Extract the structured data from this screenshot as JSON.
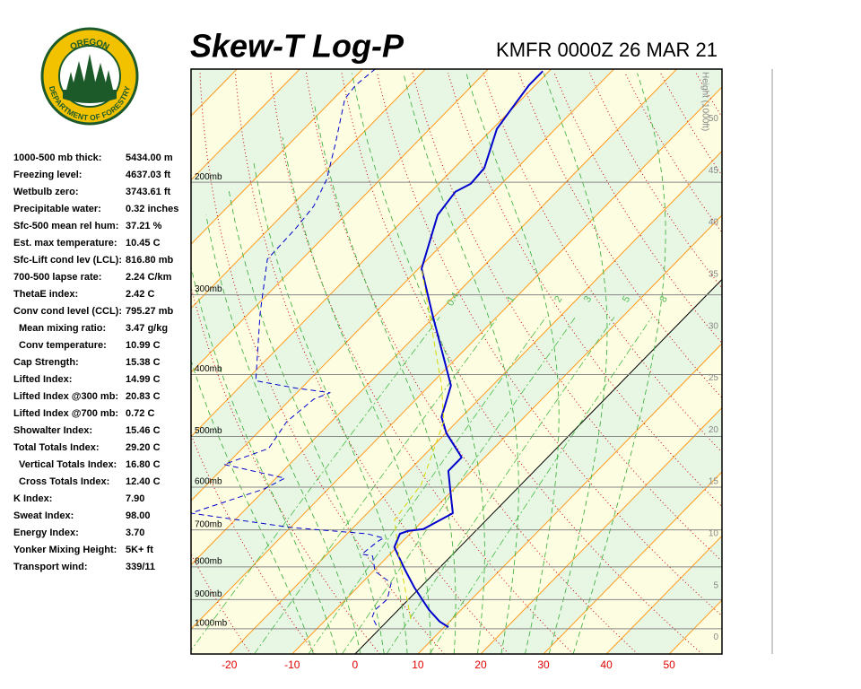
{
  "logo": {
    "top": "OREGON",
    "bottom": "DEPARTMENT OF FORESTRY"
  },
  "indices": [
    {
      "label": "1000-500 mb thick:",
      "value": "5434.00 m"
    },
    {
      "label": "Freezing level:",
      "value": "4637.03 ft"
    },
    {
      "label": "Wetbulb zero:",
      "value": "3743.61 ft"
    },
    {
      "label": "Precipitable water:",
      "value": "0.32 inches"
    },
    {
      "label": "Sfc-500 mean rel hum:",
      "value": "37.21 %"
    },
    {
      "label": "Est. max temperature:",
      "value": "10.45 C"
    },
    {
      "label": "Sfc-Lift cond lev (LCL):",
      "value": "816.80 mb"
    },
    {
      "label": "700-500 lapse rate:",
      "value": "2.24 C/km"
    },
    {
      "label": "ThetaE index:",
      "value": "2.42 C"
    },
    {
      "label": "Conv cond level (CCL):",
      "value": "795.27 mb"
    },
    {
      "label": "Mean mixing ratio:",
      "value": "3.47 g/kg"
    },
    {
      "label": "Conv temperature:",
      "value": "10.99 C"
    },
    {
      "label": "Cap Strength:",
      "value": "15.38 C"
    },
    {
      "label": "Lifted Index:",
      "value": "14.99 C"
    },
    {
      "label": "Lifted Index @300 mb:",
      "value": "20.83 C"
    },
    {
      "label": "Lifted Index @700 mb:",
      "value": "0.72 C"
    },
    {
      "label": "Showalter Index:",
      "value": "15.46 C"
    },
    {
      "label": "Total Totals Index:",
      "value": "29.20 C"
    },
    {
      "label": "Vertical Totals Index:",
      "value": "16.80 C"
    },
    {
      "label": "Cross Totals Index:",
      "value": "12.40 C"
    },
    {
      "label": "K Index:",
      "value": "7.90"
    },
    {
      "label": "Sweat Index:",
      "value": "98.00"
    },
    {
      "label": "Energy Index:",
      "value": "3.70"
    },
    {
      "label": "Yonker Mixing Height:",
      "value": "5K+ ft"
    },
    {
      "label": "Transport wind:",
      "value": "339/11"
    }
  ],
  "chart_data": {
    "type": "skewt",
    "title": "Skew-T Log-P",
    "subtitle": "KMFR 0000Z 26 MAR 21",
    "xlim": [
      -26.1,
      58.4
    ],
    "xticks": [
      -20,
      -10,
      0,
      10,
      20,
      30,
      40,
      50
    ],
    "ylim": [
      1095,
      133
    ],
    "ylog": true,
    "yticks": [
      {
        "value": 1000,
        "label": "1000mb"
      },
      {
        "value": 900,
        "label": "900mb"
      },
      {
        "value": 800,
        "label": "800mb"
      },
      {
        "value": 700,
        "label": "700mb"
      },
      {
        "value": 600,
        "label": "600mb"
      },
      {
        "value": 500,
        "label": "500mb"
      },
      {
        "value": 400,
        "label": "400mb"
      },
      {
        "value": 300,
        "label": "300mb"
      },
      {
        "value": 200,
        "label": "200mb"
      }
    ],
    "y2label": "Height (1000ft)",
    "y2lim": [
      -1.6,
      54.8
    ],
    "y2ticks": [
      0,
      5,
      10,
      15,
      20,
      25,
      30,
      35,
      40,
      45,
      50
    ],
    "mixing_ratio_lines": [
      0.4,
      1,
      2,
      3,
      5,
      8
    ],
    "series": [
      {
        "color": "#0000cc",
        "dash": false,
        "width": 2,
        "x": [
          10.7,
          8.4,
          4.9,
          -0.9,
          -5.2,
          -10.4,
          -11.6,
          -10.8,
          -8.6,
          -6.4,
          -10.2,
          -13.7,
          -13.7,
          -19.9,
          -23.2,
          -26.6,
          -40.8,
          -49.5,
          -55.3,
          -56.1,
          -54.9,
          -55.2,
          -59.3,
          -60.0,
          -61.0,
          -61.0
        ],
        "values": [
          994,
          974,
          934,
          862,
          808,
          745,
          710,
          703,
          698,
          659,
          609,
          566,
          539,
          494,
          466,
          416,
          321,
          273,
          225,
          207,
          201,
          190,
          165,
          155,
          141,
          134
        ]
      },
      {
        "color": "#0000cc",
        "dash": true,
        "width": 1,
        "x": [
          -1.1,
          -3.0,
          -3.7,
          -3.4,
          -5.3,
          -9.7,
          -12.5,
          -14.5,
          -13.9,
          -13.5,
          -16.8,
          -29.9,
          -48.1,
          -40.2,
          -38.6,
          -50.4,
          -45.8,
          -47.1,
          -46.3,
          -44.7,
          -50.9,
          -58.4,
          -68.2,
          -75.5,
          -75.8,
          -76.4,
          -78.5,
          -82.7,
          -88.2,
          -88.6,
          -88.0
        ],
        "values": [
          987,
          959,
          934,
          899,
          848,
          813,
          769,
          764,
          728,
          721,
          710,
          694,
          659,
          604,
          581,
          553,
          522,
          474,
          437,
          427,
          420,
          409,
          321,
          264,
          236,
          218,
          198,
          174,
          148,
          141,
          133
        ]
      },
      {
        "color": "#d8d800",
        "dash": true,
        "width": 1,
        "x": [
          3.4,
          -8.3,
          -14.6,
          -15.9,
          -22.1,
          -28.1,
          -49.5
        ],
        "values": [
          965,
          769,
          676,
          594,
          474,
          416,
          273
        ]
      }
    ]
  }
}
